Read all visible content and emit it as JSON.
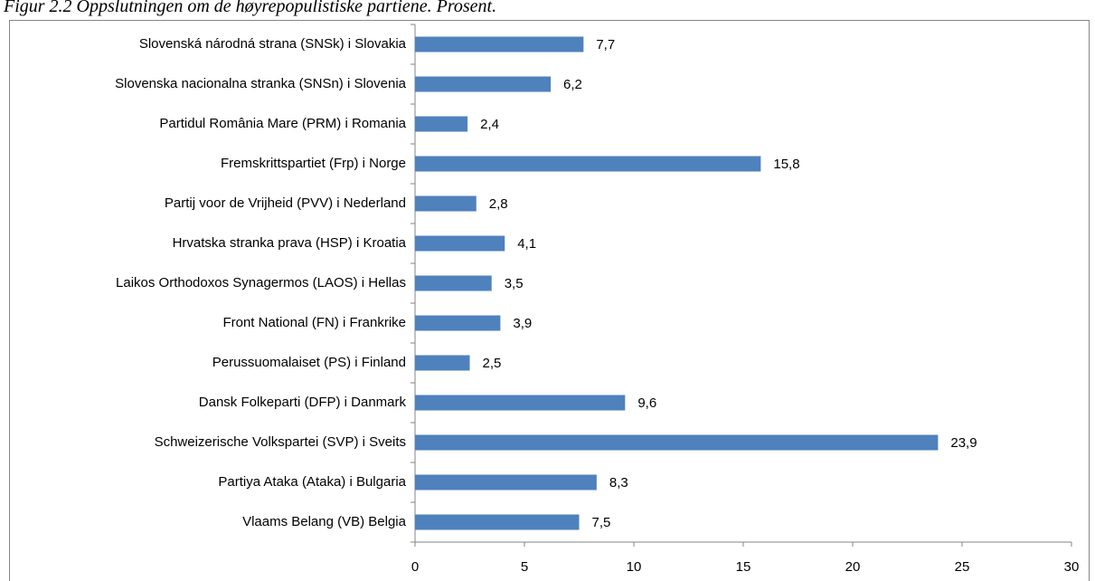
{
  "chart_data": {
    "type": "bar",
    "orientation": "horizontal",
    "title": "Figur 2.2 Oppslutningen om de høyrepopulistiske partiene. Prosent.",
    "categories": [
      "Slovenská národná strana (SNSk)  i Slovakia",
      "Slovenska nacionalna stranka (SNSn) i Slovenia",
      "Partidul România Mare (PRM) i Romania",
      "Fremskrittspartiet (Frp) i Norge",
      "Partij voor de Vrijheid (PVV) i Nederland",
      "Hrvatska stranka prava (HSP) i Kroatia",
      "Laikos Orthodoxos Synagermos (LAOS) i Hellas",
      "Front National (FN) i Frankrike",
      "Perussuomalaiset (PS) i Finland",
      "Dansk Folkeparti (DFP) i Danmark",
      "Schweizerische Volkspartei (SVP)  i Sveits",
      "Partiya Ataka (Ataka) i Bulgaria",
      "Vlaams Belang (VB) Belgia"
    ],
    "values": [
      7.7,
      6.2,
      2.4,
      15.8,
      2.8,
      4.1,
      3.5,
      3.9,
      2.5,
      9.6,
      23.9,
      8.3,
      7.5
    ],
    "value_labels": [
      "7,7",
      "6,2",
      "2,4",
      "15,8",
      "2,8",
      "4,1",
      "3,5",
      "3,9",
      "2,5",
      "9,6",
      "23,9",
      "8,3",
      "7,5"
    ],
    "color": "#4f81bd",
    "xlim": [
      0,
      30
    ],
    "xticks": [
      0,
      5,
      10,
      15,
      20,
      25,
      30
    ],
    "grid": false
  }
}
